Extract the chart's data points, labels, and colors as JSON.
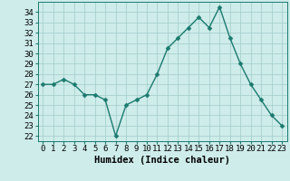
{
  "x": [
    0,
    1,
    2,
    3,
    4,
    5,
    6,
    7,
    8,
    9,
    10,
    11,
    12,
    13,
    14,
    15,
    16,
    17,
    18,
    19,
    20,
    21,
    22,
    23
  ],
  "y": [
    27.0,
    27.0,
    27.5,
    27.0,
    26.0,
    26.0,
    25.5,
    22.0,
    25.0,
    25.5,
    26.0,
    28.0,
    30.5,
    31.5,
    32.5,
    33.5,
    32.5,
    34.5,
    31.5,
    29.0,
    27.0,
    25.5,
    24.0,
    23.0
  ],
  "line_color": "#1a7a6e",
  "marker_color": "#1a7a6e",
  "bg_color": "#ceecea",
  "grid_color": "#a0ccc8",
  "xlabel": "Humidex (Indice chaleur)",
  "ylabel_ticks": [
    22,
    23,
    24,
    25,
    26,
    27,
    28,
    29,
    30,
    31,
    32,
    33,
    34
  ],
  "ylim": [
    21.5,
    35.0
  ],
  "xlim": [
    -0.5,
    23.5
  ],
  "tick_label_fontsize": 6.5,
  "xlabel_fontsize": 7.5,
  "line_width": 1.0,
  "marker_size": 2.5
}
